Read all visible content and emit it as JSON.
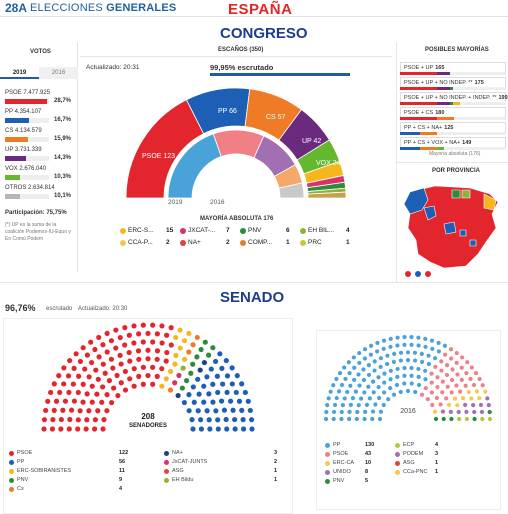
{
  "header": {
    "logo": "28A",
    "title_light": "ELECCIONES ",
    "title_bold": "GENERALES",
    "region": "ESPAÑA"
  },
  "congreso": {
    "section_title": "CONGRESO",
    "votos_header": "VOTOS",
    "tabs": [
      "2019",
      "2016"
    ],
    "votes": [
      {
        "label": "PSOE 7.477.925",
        "pct": "28,7%",
        "share": 0.287,
        "color": "#e3262e"
      },
      {
        "label": "PP 4.354.107",
        "pct": "16,7%",
        "share": 0.167,
        "color": "#1d5fb4"
      },
      {
        "label": "CS 4.134.579",
        "pct": "15,9%",
        "share": 0.159,
        "color": "#f07b26"
      },
      {
        "label": "UP 3.731.339",
        "pct": "14,3%",
        "share": 0.143,
        "color": "#6b2a7e"
      },
      {
        "label": "VOX 2.676.040",
        "pct": "10,3%",
        "share": 0.103,
        "color": "#63b82e"
      },
      {
        "label": "OTROS 2.634.814",
        "pct": "10,1%",
        "share": 0.101,
        "color": "#b5b5b5"
      }
    ],
    "participation": "Participación: 75,75%",
    "footnote": "(*) UP es la suma de la coalición Podemos-IU-Equo y En Comú Podem",
    "seats_header": "ESCAÑOS (350)",
    "updated": "Actualizado: 20:31",
    "scrutiny": "99,95% escrutado",
    "hemicycle_2019": [
      {
        "party": "PSOE",
        "seats": 123,
        "color": "#e3262e"
      },
      {
        "party": "PP",
        "seats": 66,
        "color": "#1d5fb4"
      },
      {
        "party": "CS",
        "seats": 57,
        "color": "#f07b26"
      },
      {
        "party": "UP",
        "seats": 42,
        "color": "#6b2a7e"
      },
      {
        "party": "VOX",
        "seats": 24,
        "color": "#63b82e"
      },
      {
        "party": "ERC",
        "seats": 15,
        "color": "#f5b81c"
      },
      {
        "party": "JXCAT",
        "seats": 7,
        "color": "#d6336c"
      },
      {
        "party": "PNV",
        "seats": 6,
        "color": "#2e8b3a"
      },
      {
        "party": "EH BIL",
        "seats": 4,
        "color": "#8db33a"
      },
      {
        "party": "REST",
        "seats": 6,
        "color": "#c8a14a"
      }
    ],
    "hemicycle_2016": [
      {
        "party": "PP",
        "seats": 137,
        "color": "#4aa3d8"
      },
      {
        "party": "PSOE",
        "seats": 85,
        "color": "#f07f86"
      },
      {
        "party": "UP",
        "seats": 71,
        "color": "#a36fb3"
      },
      {
        "party": "CS",
        "seats": 32,
        "color": "#f6a86a"
      },
      {
        "party": "OTROS",
        "seats": 25,
        "color": "#c9c9c9"
      }
    ],
    "arc_labels": [
      "PSOE 123",
      "PP 66",
      "CS 57",
      "UP 42",
      "VOX 24"
    ],
    "inner_labels": [
      "137",
      "85",
      "71",
      "32"
    ],
    "year_left": "2019",
    "year_right": "2016",
    "majority": "MAYORÍA ABSOLUTA 176",
    "legend": [
      {
        "name": "ERC-S...",
        "seats": "15",
        "color": "#f5b81c"
      },
      {
        "name": "JXCAT-...",
        "seats": "7",
        "color": "#d6336c"
      },
      {
        "name": "PNV",
        "seats": "6",
        "color": "#2e8b3a"
      },
      {
        "name": "EH BIL...",
        "seats": "4",
        "color": "#8db33a"
      },
      {
        "name": "CCA-P...",
        "seats": "2",
        "color": "#f2c94c"
      },
      {
        "name": "NA+",
        "seats": "2",
        "color": "#e0443c"
      },
      {
        "name": "COMP...",
        "seats": "1",
        "color": "#e87a2a"
      },
      {
        "name": "PRC",
        "seats": "1",
        "color": "#c6c93a"
      }
    ],
    "posibles_header": "POSIBLES MAYORÍAS",
    "majorities": [
      {
        "label": "PSOE + UP",
        "num": "165",
        "segments": [
          {
            "c": "#e3262e",
            "w": 0.35
          },
          {
            "c": "#6b2a7e",
            "w": 0.12
          }
        ]
      },
      {
        "label": "PSOE + UP + NO INDEP. **",
        "num": "175",
        "segments": [
          {
            "c": "#e3262e",
            "w": 0.35
          },
          {
            "c": "#6b2a7e",
            "w": 0.12
          },
          {
            "c": "#2e8b3a",
            "w": 0.03
          }
        ]
      },
      {
        "label": "PSOE + UP + NO INDEP. + INDEP. **",
        "num": "199",
        "segments": [
          {
            "c": "#e3262e",
            "w": 0.35
          },
          {
            "c": "#6b2a7e",
            "w": 0.12
          },
          {
            "c": "#2e8b3a",
            "w": 0.03
          },
          {
            "c": "#f5b81c",
            "w": 0.07
          }
        ]
      },
      {
        "label": "PSOE + CS",
        "num": "180",
        "segments": [
          {
            "c": "#e3262e",
            "w": 0.35
          },
          {
            "c": "#f07b26",
            "w": 0.16
          }
        ]
      },
      {
        "label": "PP + CS + NA+",
        "num": "125",
        "segments": [
          {
            "c": "#1d5fb4",
            "w": 0.19
          },
          {
            "c": "#f07b26",
            "w": 0.16
          }
        ]
      },
      {
        "label": "PP + CS + VOX + NA+",
        "num": "149",
        "segments": [
          {
            "c": "#1d5fb4",
            "w": 0.19
          },
          {
            "c": "#f07b26",
            "w": 0.16
          },
          {
            "c": "#63b82e",
            "w": 0.07
          }
        ]
      }
    ],
    "majority_small": "Mayoría absoluta (176)",
    "provincia_header": "POR PROVINCIA"
  },
  "senado": {
    "section_title": "SENADO",
    "scrutiny": "96,76%",
    "scrutiny_word": "escrutado",
    "updated": "Actualizado: 20:30",
    "total": "208",
    "total_label": "SENADORES",
    "year_2016": "2016",
    "legend_2019": [
      {
        "name": "PSOE",
        "seats": "122",
        "color": "#e3262e"
      },
      {
        "name": "PP",
        "seats": "56",
        "color": "#1d5fb4"
      },
      {
        "name": "ERC-SOBIRANISTES",
        "seats": "11",
        "color": "#f5b81c"
      },
      {
        "name": "PNV",
        "seats": "9",
        "color": "#2e8b3a"
      },
      {
        "name": "Cs",
        "seats": "4",
        "color": "#f07b26"
      },
      {
        "name": "NA+",
        "seats": "3",
        "color": "#1e3f8a"
      },
      {
        "name": "JxCAT-JUNTS",
        "seats": "2",
        "color": "#d6336c"
      },
      {
        "name": "ASG",
        "seats": "1",
        "color": "#e0443c"
      },
      {
        "name": "EH Bildu",
        "seats": "1",
        "color": "#8db33a"
      }
    ],
    "legend_2016": [
      {
        "name": "PP",
        "seats": "130",
        "color": "#4aa3d8"
      },
      {
        "name": "PSOE",
        "seats": "43",
        "color": "#f07f86"
      },
      {
        "name": "ERC-CA",
        "seats": "10",
        "color": "#f5c94c"
      },
      {
        "name": "UNIDO",
        "seats": "8",
        "color": "#a36fb3"
      },
      {
        "name": "PNV",
        "seats": "5",
        "color": "#2e8b3a"
      },
      {
        "name": "ECP",
        "seats": "4",
        "color": "#b1c93a"
      },
      {
        "name": "PODEM",
        "seats": "3",
        "color": "#a36fb3"
      },
      {
        "name": "ASG",
        "seats": "1",
        "color": "#e0443c"
      },
      {
        "name": "CCa-PNC",
        "seats": "1",
        "color": "#f2c94c"
      }
    ],
    "rows_2019": [
      {
        "color": "#e3262e",
        "count": 122
      },
      {
        "color": "#f5b81c",
        "count": 11
      },
      {
        "color": "#f07b26",
        "count": 4
      },
      {
        "color": "#d6336c",
        "count": 2
      },
      {
        "color": "#8db33a",
        "count": 1
      },
      {
        "color": "#2e8b3a",
        "count": 9
      },
      {
        "color": "#1e3f8a",
        "count": 3
      },
      {
        "color": "#1d5fb4",
        "count": 56
      }
    ],
    "rows_2016": [
      {
        "color": "#4aa3d8",
        "count": 130
      },
      {
        "color": "#f07f86",
        "count": 43
      },
      {
        "color": "#f5c94c",
        "count": 10
      },
      {
        "color": "#a36fb3",
        "count": 11
      },
      {
        "color": "#2e8b3a",
        "count": 5
      },
      {
        "color": "#b1c93a",
        "count": 4
      }
    ]
  }
}
